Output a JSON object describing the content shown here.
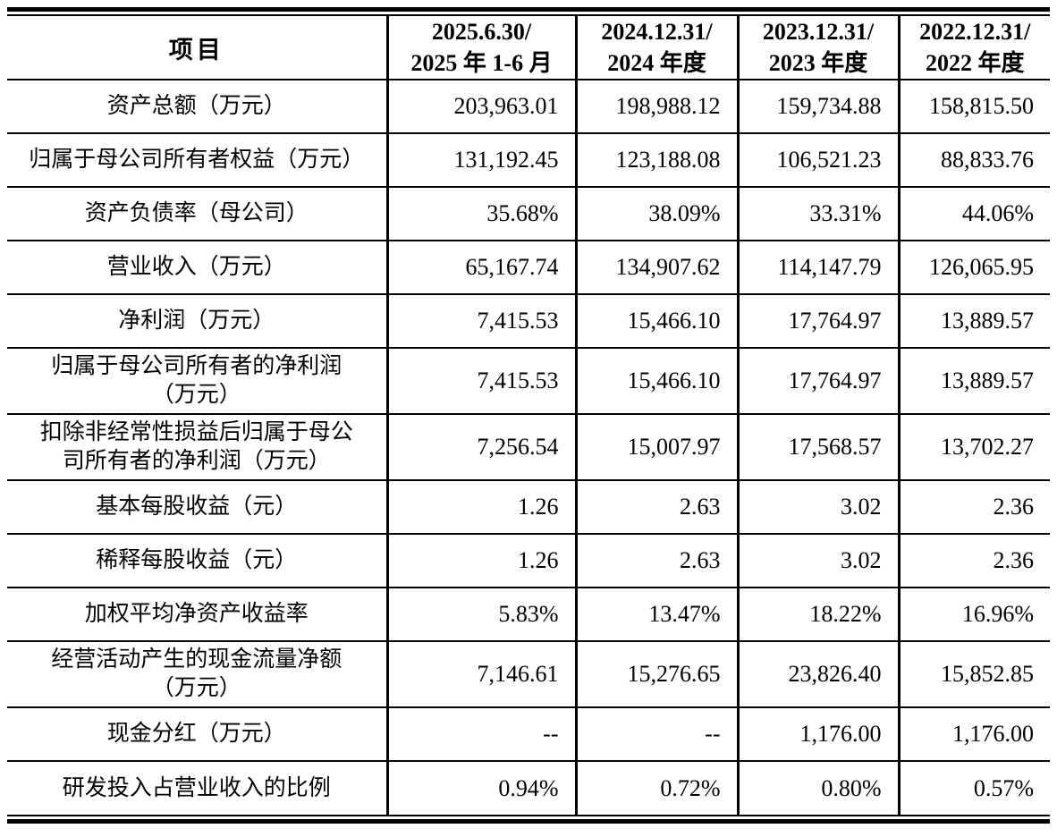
{
  "colors": {
    "text": "#000000",
    "background": "#ffffff",
    "border": "#000000"
  },
  "table": {
    "item_column_header": "项目",
    "period_headers": [
      "2025.6.30/\n2025 年 1-6 月",
      "2024.12.31/\n2024 年度",
      "2023.12.31/\n2023 年度",
      "2022.12.31/\n2022 年度"
    ],
    "rows": [
      {
        "label": "资产总额（万元）",
        "values": [
          "203,963.01",
          "198,988.12",
          "159,734.88",
          "158,815.50"
        ]
      },
      {
        "label": "归属于母公司所有者权益（万元）",
        "values": [
          "131,192.45",
          "123,188.08",
          "106,521.23",
          "88,833.76"
        ]
      },
      {
        "label": "资产负债率（母公司）",
        "values": [
          "35.68%",
          "38.09%",
          "33.31%",
          "44.06%"
        ]
      },
      {
        "label": "营业收入（万元）",
        "values": [
          "65,167.74",
          "134,907.62",
          "114,147.79",
          "126,065.95"
        ]
      },
      {
        "label": "净利润（万元）",
        "values": [
          "7,415.53",
          "15,466.10",
          "17,764.97",
          "13,889.57"
        ]
      },
      {
        "label": "归属于母公司所有者的净利润\n（万元）",
        "values": [
          "7,415.53",
          "15,466.10",
          "17,764.97",
          "13,889.57"
        ]
      },
      {
        "label": "扣除非经常性损益后归属于母公\n司所有者的净利润（万元）",
        "values": [
          "7,256.54",
          "15,007.97",
          "17,568.57",
          "13,702.27"
        ]
      },
      {
        "label": "基本每股收益（元）",
        "values": [
          "1.26",
          "2.63",
          "3.02",
          "2.36"
        ]
      },
      {
        "label": "稀释每股收益（元）",
        "values": [
          "1.26",
          "2.63",
          "3.02",
          "2.36"
        ]
      },
      {
        "label": "加权平均净资产收益率",
        "values": [
          "5.83%",
          "13.47%",
          "18.22%",
          "16.96%"
        ]
      },
      {
        "label": "经营活动产生的现金流量净额\n（万元）",
        "values": [
          "7,146.61",
          "15,276.65",
          "23,826.40",
          "15,852.85"
        ]
      },
      {
        "label": "现金分红（万元）",
        "values": [
          "--",
          "--",
          "1,176.00",
          "1,176.00"
        ]
      },
      {
        "label": "研发投入占营业收入的比例",
        "values": [
          "0.94%",
          "0.72%",
          "0.80%",
          "0.57%"
        ]
      }
    ]
  }
}
